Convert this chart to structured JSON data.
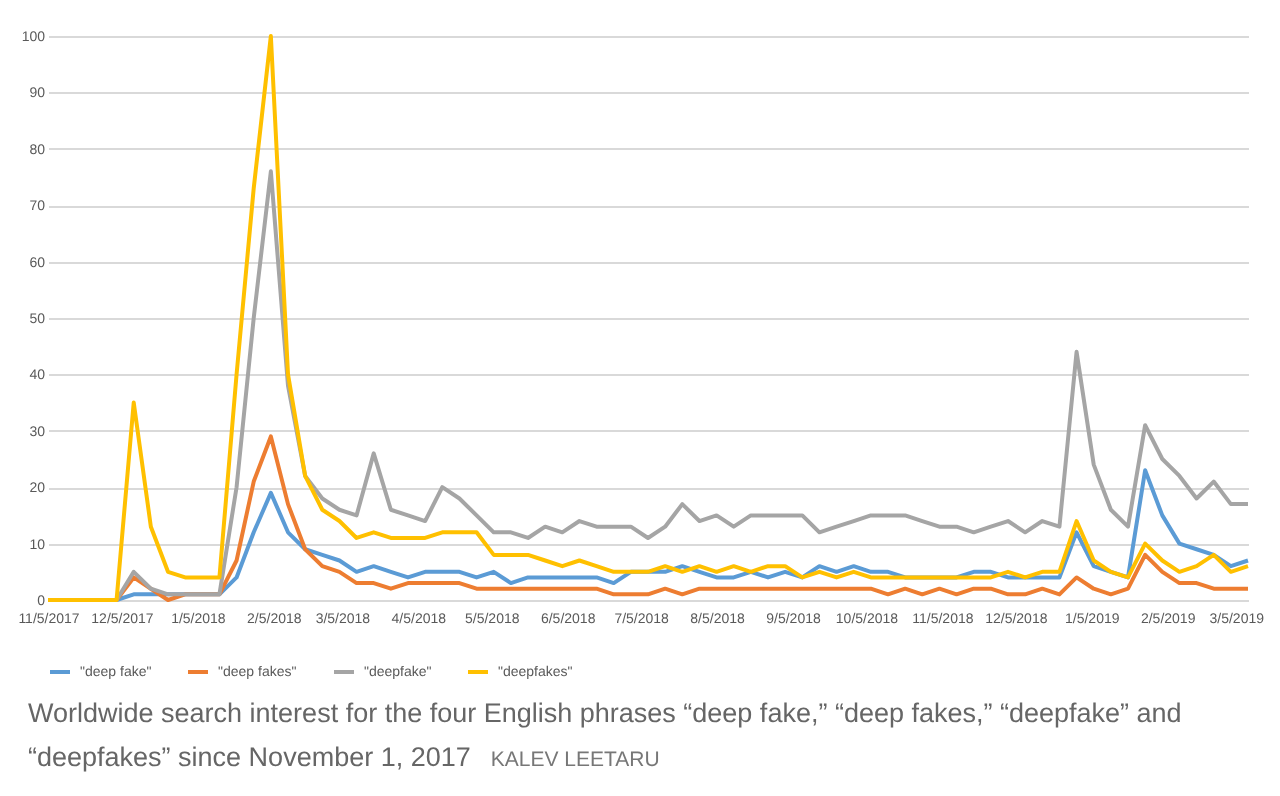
{
  "chart_data": {
    "type": "line",
    "x": [
      "2017-11-05",
      "2017-11-12",
      "2017-11-19",
      "2017-11-26",
      "2017-12-03",
      "2017-12-10",
      "2017-12-17",
      "2017-12-24",
      "2017-12-31",
      "2018-01-07",
      "2018-01-14",
      "2018-01-21",
      "2018-01-28",
      "2018-02-04",
      "2018-02-11",
      "2018-02-18",
      "2018-02-25",
      "2018-03-04",
      "2018-03-11",
      "2018-03-18",
      "2018-03-25",
      "2018-04-01",
      "2018-04-08",
      "2018-04-15",
      "2018-04-22",
      "2018-04-29",
      "2018-05-06",
      "2018-05-13",
      "2018-05-20",
      "2018-05-27",
      "2018-06-03",
      "2018-06-10",
      "2018-06-17",
      "2018-06-24",
      "2018-07-01",
      "2018-07-08",
      "2018-07-15",
      "2018-07-22",
      "2018-07-29",
      "2018-08-05",
      "2018-08-12",
      "2018-08-19",
      "2018-08-26",
      "2018-09-02",
      "2018-09-09",
      "2018-09-16",
      "2018-09-23",
      "2018-09-30",
      "2018-10-07",
      "2018-10-14",
      "2018-10-21",
      "2018-10-28",
      "2018-11-04",
      "2018-11-11",
      "2018-11-18",
      "2018-11-25",
      "2018-12-02",
      "2018-12-09",
      "2018-12-16",
      "2018-12-23",
      "2018-12-30",
      "2019-01-06",
      "2019-01-13",
      "2019-01-20",
      "2019-01-27",
      "2019-02-03",
      "2019-02-10",
      "2019-02-17",
      "2019-02-24",
      "2019-03-03",
      "2019-03-10"
    ],
    "series": [
      {
        "name": "\"deep fake\"",
        "color": "#5b9bd5",
        "values": [
          null,
          null,
          null,
          0,
          0,
          1,
          1,
          1,
          1,
          1,
          1,
          4,
          12,
          19,
          12,
          9,
          8,
          7,
          5,
          6,
          5,
          4,
          5,
          5,
          5,
          4,
          5,
          3,
          4,
          4,
          4,
          4,
          4,
          3,
          5,
          5,
          5,
          6,
          5,
          4,
          4,
          5,
          4,
          5,
          4,
          6,
          5,
          6,
          5,
          5,
          4,
          4,
          4,
          4,
          5,
          5,
          4,
          4,
          4,
          4,
          12,
          6,
          5,
          4,
          23,
          15,
          10,
          9,
          8,
          6,
          7
        ]
      },
      {
        "name": "\"deep fakes\"",
        "color": "#ed7d31",
        "values": [
          null,
          null,
          null,
          0,
          0,
          4,
          2,
          0,
          1,
          1,
          1,
          7,
          21,
          29,
          17,
          9,
          6,
          5,
          3,
          3,
          2,
          3,
          3,
          3,
          3,
          2,
          2,
          2,
          2,
          2,
          2,
          2,
          2,
          1,
          1,
          1,
          2,
          1,
          2,
          2,
          2,
          2,
          2,
          2,
          2,
          2,
          2,
          2,
          2,
          1,
          2,
          1,
          2,
          1,
          2,
          2,
          1,
          1,
          2,
          1,
          4,
          2,
          1,
          2,
          8,
          5,
          3,
          3,
          2,
          2,
          2
        ]
      },
      {
        "name": "\"deepfake\"",
        "color": "#a5a5a5",
        "values": [
          0,
          0,
          0,
          0,
          0,
          5,
          2,
          1,
          1,
          1,
          1,
          20,
          50,
          76,
          38,
          22,
          18,
          16,
          15,
          26,
          16,
          15,
          14,
          20,
          18,
          15,
          12,
          12,
          11,
          13,
          12,
          14,
          13,
          13,
          13,
          11,
          13,
          17,
          14,
          15,
          13,
          15,
          15,
          15,
          15,
          12,
          13,
          14,
          15,
          15,
          15,
          14,
          13,
          13,
          12,
          13,
          14,
          12,
          14,
          13,
          44,
          24,
          16,
          13,
          31,
          25,
          22,
          18,
          21,
          17,
          17
        ]
      },
      {
        "name": "\"deepfakes\"",
        "color": "#ffc000",
        "values": [
          0,
          0,
          0,
          0,
          0,
          35,
          13,
          5,
          4,
          4,
          4,
          40,
          73,
          100,
          40,
          22,
          16,
          14,
          11,
          12,
          11,
          11,
          11,
          12,
          12,
          12,
          8,
          8,
          8,
          7,
          6,
          7,
          6,
          5,
          5,
          5,
          6,
          5,
          6,
          5,
          6,
          5,
          6,
          6,
          4,
          5,
          4,
          5,
          4,
          4,
          4,
          4,
          4,
          4,
          4,
          4,
          5,
          4,
          5,
          5,
          14,
          7,
          5,
          4,
          10,
          7,
          5,
          6,
          8,
          5,
          6
        ]
      }
    ],
    "xlim": [
      "2017-11-05",
      "2019-03-10"
    ],
    "xticks": [
      {
        "value": "2017-11-05",
        "label": "11/5/2017"
      },
      {
        "value": "2017-12-05",
        "label": "12/5/2017"
      },
      {
        "value": "2018-01-05",
        "label": "1/5/2018"
      },
      {
        "value": "2018-02-05",
        "label": "2/5/2018"
      },
      {
        "value": "2018-03-05",
        "label": "3/5/2018"
      },
      {
        "value": "2018-04-05",
        "label": "4/5/2018"
      },
      {
        "value": "2018-05-05",
        "label": "5/5/2018"
      },
      {
        "value": "2018-06-05",
        "label": "6/5/2018"
      },
      {
        "value": "2018-07-05",
        "label": "7/5/2018"
      },
      {
        "value": "2018-08-05",
        "label": "8/5/2018"
      },
      {
        "value": "2018-09-05",
        "label": "9/5/2018"
      },
      {
        "value": "2018-10-05",
        "label": "10/5/2018"
      },
      {
        "value": "2018-11-05",
        "label": "11/5/2018"
      },
      {
        "value": "2018-12-05",
        "label": "12/5/2018"
      },
      {
        "value": "2019-01-05",
        "label": "1/5/2019"
      },
      {
        "value": "2019-02-05",
        "label": "2/5/2019"
      },
      {
        "value": "2019-03-05",
        "label": "3/5/2019"
      }
    ],
    "ylim": [
      0,
      100
    ],
    "yticks": [
      0,
      10,
      20,
      30,
      40,
      50,
      60,
      70,
      80,
      90,
      100
    ],
    "grid": "y",
    "legend": "bottom",
    "annotations": [
      "Worldwide search interest for the four English phrases “deep fake,” “deep fakes,” “deepfake” and “deepfakes” since November 1, 2017",
      "KALEV LEETARU"
    ]
  }
}
